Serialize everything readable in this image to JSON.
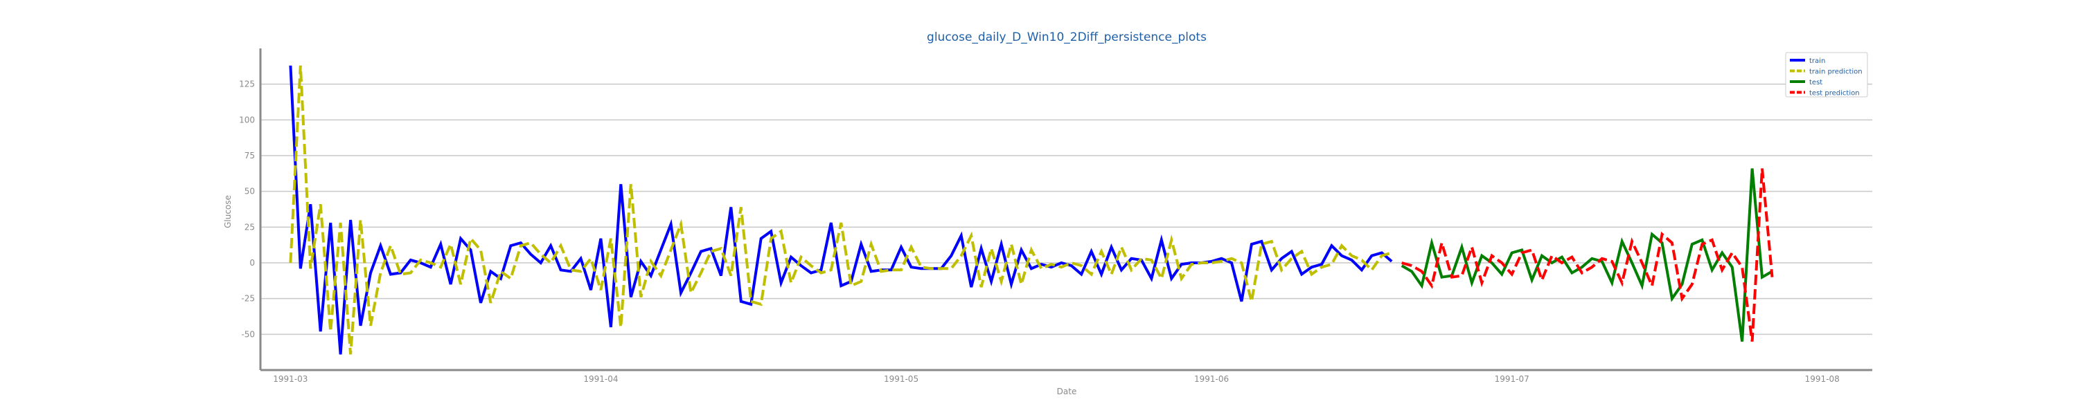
{
  "chart_data": {
    "type": "line",
    "title": "glucose_daily_D_Win10_2Diff_persistence_plots",
    "xlabel": "Date",
    "ylabel": "Glucose",
    "x_start": "1991-03-01",
    "xlim": [
      "1991-02-26",
      "1991-08-06"
    ],
    "ylim": [
      -75,
      150
    ],
    "grid": true,
    "grid_axis": "y",
    "x_ticks": [
      "1991-03",
      "1991-04",
      "1991-05",
      "1991-06",
      "1991-07",
      "1991-08"
    ],
    "y_ticks": [
      -50,
      -25,
      0,
      25,
      50,
      75,
      100,
      125
    ],
    "legend": {
      "placement": "top-right"
    },
    "series": [
      {
        "name": "train",
        "color": "#0000ff",
        "style": "solid",
        "start": "1991-03-01",
        "values": [
          138,
          -4,
          41,
          -48,
          28,
          -64,
          30,
          -44,
          -7,
          12,
          -8,
          -7,
          2,
          0,
          -3,
          13,
          -15,
          17,
          9,
          -28,
          -6,
          -11,
          12,
          14,
          6,
          0,
          12,
          -5,
          -6,
          3,
          -19,
          17,
          -45,
          55,
          -24,
          1,
          -9,
          9,
          27,
          -21,
          -7,
          8,
          10,
          -9,
          39,
          -27,
          -29,
          17,
          22,
          -14,
          4,
          -2,
          -7,
          -5,
          28,
          -16,
          -13,
          13,
          -6,
          -5,
          -5,
          11,
          -3,
          -4,
          -4,
          -4,
          5,
          19,
          -17,
          10,
          -13,
          13,
          -15,
          9,
          -4,
          -1,
          -3,
          0,
          -2,
          -8,
          8,
          -8,
          11,
          -5,
          3,
          2,
          -11,
          16,
          -11,
          -1,
          0,
          0,
          1,
          3,
          0,
          -27,
          13,
          15,
          -5,
          3,
          8,
          -8,
          -3,
          -1,
          12,
          5,
          2,
          -5,
          5,
          7,
          1
        ]
      },
      {
        "name": "train prediction",
        "color": "#bfbf00",
        "style": "dashed",
        "start": "1991-03-01",
        "values": [
          0,
          138,
          -4,
          41,
          -48,
          28,
          -64,
          30,
          -44,
          -7,
          12,
          -8,
          -7,
          2,
          0,
          -3,
          13,
          -15,
          17,
          9,
          -28,
          -6,
          -11,
          12,
          14,
          6,
          0,
          12,
          -5,
          -6,
          3,
          -19,
          17,
          -45,
          55,
          -24,
          1,
          -9,
          9,
          27,
          -21,
          -7,
          8,
          10,
          -9,
          39,
          -27,
          -29,
          17,
          22,
          -14,
          4,
          -2,
          -7,
          -5,
          28,
          -16,
          -13,
          13,
          -6,
          -5,
          -5,
          11,
          -3,
          -4,
          -4,
          -4,
          5,
          19,
          -17,
          10,
          -13,
          13,
          -15,
          9,
          -4,
          -1,
          -3,
          0,
          -2,
          -8,
          8,
          -8,
          11,
          -5,
          3,
          2,
          -11,
          16,
          -11,
          -1,
          0,
          0,
          1,
          3,
          0,
          -27,
          13,
          15,
          -5,
          3,
          8,
          -8,
          -3,
          -1,
          12,
          5,
          2,
          -5,
          5,
          7
        ]
      },
      {
        "name": "test",
        "color": "#007f00",
        "style": "solid",
        "start": "1991-06-20",
        "values": [
          -2,
          -6,
          -16,
          14,
          -10,
          -9,
          11,
          -14,
          5,
          0,
          -8,
          7,
          9,
          -12,
          5,
          0,
          4,
          -7,
          -3,
          3,
          1,
          -14,
          15,
          0,
          -16,
          20,
          14,
          -25,
          -15,
          13,
          16,
          -5,
          7,
          -3,
          -55,
          66,
          -10,
          -6
        ]
      },
      {
        "name": "test prediction",
        "color": "#ff0000",
        "style": "dashed",
        "start": "1991-06-20",
        "values": [
          0,
          -2,
          -6,
          -16,
          14,
          -10,
          -9,
          11,
          -14,
          5,
          0,
          -8,
          7,
          9,
          -12,
          5,
          0,
          4,
          -7,
          -3,
          3,
          1,
          -14,
          15,
          0,
          -16,
          20,
          14,
          -25,
          -15,
          13,
          16,
          -5,
          7,
          -3,
          -55,
          66,
          -10
        ]
      }
    ]
  }
}
